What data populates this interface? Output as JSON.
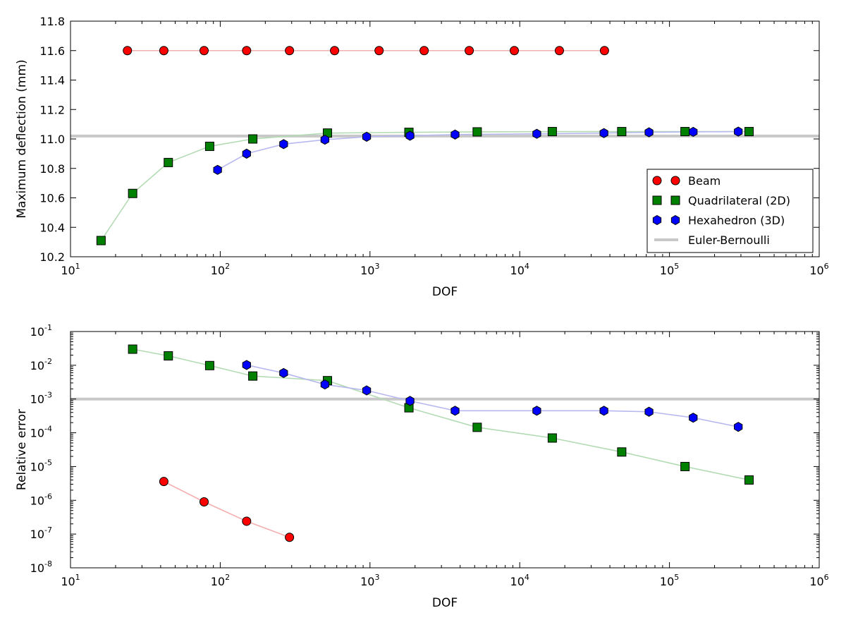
{
  "chart_data": [
    {
      "type": "scatter",
      "xlabel": "DOF",
      "ylabel": "Maximum deflection (mm)",
      "xscale": "log",
      "yscale": "linear",
      "xlim": [
        10,
        1000000
      ],
      "ylim": [
        10.2,
        11.8
      ],
      "xtick_exponents": [
        "1",
        "2",
        "3",
        "4",
        "5",
        "6"
      ],
      "ytick_labels": [
        "10.2",
        "10.4",
        "10.6",
        "10.8",
        "11.0",
        "11.2",
        "11.4",
        "11.6",
        "11.8"
      ],
      "yticks": [
        10.2,
        10.4,
        10.6,
        10.8,
        11.0,
        11.2,
        11.4,
        11.6,
        11.8
      ],
      "legend_position": "lower-right",
      "reference_line": {
        "name": "Euler-Bernoulli",
        "y": 11.02,
        "color": "#c8c8c8"
      },
      "series": [
        {
          "name": "Beam",
          "marker": "circle",
          "color": "#ff0000",
          "line_color": "#f4b0b0",
          "x": [
            24,
            42,
            78,
            150,
            290,
            580,
            1150,
            2300,
            4600,
            9200,
            18400,
            36800
          ],
          "y": [
            11.6,
            11.6,
            11.6,
            11.6,
            11.6,
            11.6,
            11.6,
            11.6,
            11.6,
            11.6,
            11.6,
            11.6
          ]
        },
        {
          "name": "Quadrilateral (2D)",
          "marker": "square",
          "color": "#008000",
          "line_color": "#b3dbb3",
          "x": [
            16,
            26,
            45,
            85,
            165,
            520,
            1820,
            5200,
            16500,
            48000,
            127000,
            340000
          ],
          "y": [
            10.31,
            10.63,
            10.84,
            10.95,
            11.0,
            11.04,
            11.045,
            11.048,
            11.05,
            11.05,
            11.05,
            11.05
          ]
        },
        {
          "name": "Hexahedron (3D)",
          "marker": "hexagon",
          "color": "#0000ff",
          "line_color": "#b8b8f0",
          "x": [
            96,
            150,
            265,
            500,
            950,
            1850,
            3700,
            13000,
            36500,
            73000,
            144000,
            288000
          ],
          "y": [
            10.79,
            10.9,
            10.965,
            10.995,
            11.015,
            11.022,
            11.03,
            11.035,
            11.04,
            11.045,
            11.048,
            11.05
          ]
        }
      ]
    },
    {
      "type": "scatter",
      "xlabel": "DOF",
      "ylabel": "Relative error",
      "xscale": "log",
      "yscale": "log",
      "xlim": [
        10,
        1000000
      ],
      "ylim": [
        1e-08,
        0.1
      ],
      "xtick_exponents": [
        "1",
        "2",
        "3",
        "4",
        "5",
        "6"
      ],
      "ytick_exponents": [
        "-8",
        "-7",
        "-6",
        "-5",
        "-4",
        "-3",
        "-2",
        "-1"
      ],
      "reference_line": {
        "name": "Euler-Bernoulli",
        "y": 0.001,
        "color": "#c8c8c8"
      },
      "series": [
        {
          "name": "Beam",
          "marker": "circle",
          "color": "#ff0000",
          "line_color": "#f4b0b0",
          "x": [
            42,
            78,
            150,
            290
          ],
          "y": [
            3.6e-06,
            9e-07,
            2.4e-07,
            8e-08
          ]
        },
        {
          "name": "Quadrilateral (2D)",
          "marker": "square",
          "color": "#008000",
          "line_color": "#b3dbb3",
          "x": [
            26,
            45,
            85,
            165,
            520,
            1820,
            5200,
            16500,
            48000,
            127000,
            340000
          ],
          "y": [
            0.03,
            0.019,
            0.0098,
            0.0048,
            0.0035,
            0.00055,
            0.000145,
            7e-05,
            2.7e-05,
            1e-05,
            4e-06
          ]
        },
        {
          "name": "Hexahedron (3D)",
          "marker": "hexagon",
          "color": "#0000ff",
          "line_color": "#b8b8f0",
          "x": [
            150,
            265,
            500,
            950,
            1850,
            3700,
            13000,
            36500,
            73000,
            144000,
            288000
          ],
          "y": [
            0.0102,
            0.0059,
            0.0027,
            0.0018,
            0.00088,
            0.00045,
            0.00045,
            0.00045,
            0.00042,
            0.00028,
            0.00015
          ]
        }
      ]
    }
  ]
}
